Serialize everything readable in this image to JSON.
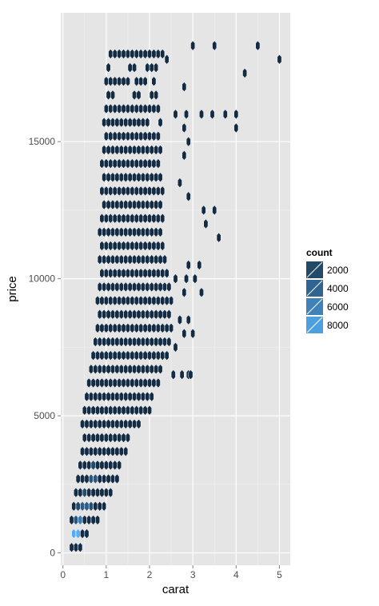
{
  "chart_data": {
    "type": "hexbin",
    "xlabel": "carat",
    "ylabel": "price",
    "xlim": [
      -0.05,
      5.25
    ],
    "ylim": [
      -450,
      19700
    ],
    "x_ticks": [
      0,
      1,
      2,
      3,
      4,
      5
    ],
    "y_ticks": [
      0,
      5000,
      10000,
      15000
    ],
    "y_tick_labels": [
      "0",
      "5000",
      "10000",
      "15000"
    ],
    "grid": true,
    "legend": {
      "title": "count",
      "position": "right",
      "entries": [
        {
          "label": "2000",
          "value": 2000
        },
        {
          "label": "4000",
          "value": 4000
        },
        {
          "label": "6000",
          "value": 6000
        },
        {
          "label": "8000",
          "value": 8000
        }
      ]
    },
    "color_scale": {
      "low": "#132b43",
      "high": "#56b1f7",
      "count_range": [
        1,
        9200
      ]
    },
    "hex_size": {
      "dx_carat": 0.1,
      "dy_price": 500
    },
    "envelope": [
      {
        "y": 200,
        "xmin": 0.2,
        "xmax": 0.45
      },
      {
        "y": 1000,
        "xmin": 0.2,
        "xmax": 0.75
      },
      {
        "y": 2000,
        "xmin": 0.2,
        "xmax": 1.05
      },
      {
        "y": 3000,
        "xmin": 0.35,
        "xmax": 1.35
      },
      {
        "y": 4000,
        "xmin": 0.4,
        "xmax": 1.5
      },
      {
        "y": 5000,
        "xmin": 0.45,
        "xmax": 1.95
      },
      {
        "y": 6000,
        "xmin": 0.55,
        "xmax": 2.2
      },
      {
        "y": 7000,
        "xmin": 0.65,
        "xmax": 2.4
      },
      {
        "y": 8000,
        "xmin": 0.75,
        "xmax": 2.5
      },
      {
        "y": 9000,
        "xmin": 0.8,
        "xmax": 2.5
      },
      {
        "y": 10000,
        "xmin": 0.8,
        "xmax": 2.5
      },
      {
        "y": 11000,
        "xmin": 0.85,
        "xmax": 2.4
      },
      {
        "y": 12000,
        "xmin": 0.85,
        "xmax": 2.3
      },
      {
        "y": 13000,
        "xmin": 0.9,
        "xmax": 2.3
      },
      {
        "y": 14000,
        "xmin": 0.9,
        "xmax": 2.3
      },
      {
        "y": 15000,
        "xmin": 0.9,
        "xmax": 2.25
      },
      {
        "y": 16000,
        "xmin": 0.95,
        "xmax": 2.3
      },
      {
        "y": 17000,
        "xmin": 1.0,
        "xmax": 2.1
      },
      {
        "y": 18000,
        "xmin": 1.0,
        "xmax": 2.2
      },
      {
        "y": 18500,
        "xmin": 1.2,
        "xmax": 2.6
      }
    ],
    "holes": [
      {
        "x": 1.2,
        "y": 17500
      },
      {
        "x": 1.4,
        "y": 17500
      },
      {
        "x": 1.6,
        "y": 17000
      },
      {
        "x": 1.8,
        "y": 17500
      },
      {
        "x": 1.3,
        "y": 16500
      },
      {
        "x": 1.5,
        "y": 16500
      },
      {
        "x": 1.9,
        "y": 16500
      },
      {
        "x": 2.0,
        "y": 17000
      },
      {
        "x": 2.1,
        "y": 15500
      }
    ],
    "outliers": [
      {
        "x": 3.0,
        "y": 18500
      },
      {
        "x": 3.5,
        "y": 18500
      },
      {
        "x": 4.5,
        "y": 18500
      },
      {
        "x": 5.0,
        "y": 18000
      },
      {
        "x": 4.2,
        "y": 17500
      },
      {
        "x": 2.4,
        "y": 18000
      },
      {
        "x": 2.8,
        "y": 17000
      },
      {
        "x": 2.6,
        "y": 16000
      },
      {
        "x": 2.85,
        "y": 16000
      },
      {
        "x": 3.2,
        "y": 16000
      },
      {
        "x": 3.45,
        "y": 16000
      },
      {
        "x": 3.75,
        "y": 16000
      },
      {
        "x": 4.0,
        "y": 16000
      },
      {
        "x": 4.0,
        "y": 15500
      },
      {
        "x": 2.8,
        "y": 15500
      },
      {
        "x": 2.9,
        "y": 15000
      },
      {
        "x": 2.8,
        "y": 14500
      },
      {
        "x": 2.7,
        "y": 13500
      },
      {
        "x": 2.9,
        "y": 13000
      },
      {
        "x": 3.25,
        "y": 12500
      },
      {
        "x": 3.5,
        "y": 12500
      },
      {
        "x": 3.3,
        "y": 12000
      },
      {
        "x": 3.6,
        "y": 11500
      },
      {
        "x": 2.9,
        "y": 10500
      },
      {
        "x": 2.6,
        "y": 10000
      },
      {
        "x": 2.85,
        "y": 10000
      },
      {
        "x": 3.05,
        "y": 10000
      },
      {
        "x": 3.15,
        "y": 10500
      },
      {
        "x": 3.2,
        "y": 9500
      },
      {
        "x": 2.8,
        "y": 9500
      },
      {
        "x": 2.7,
        "y": 8500
      },
      {
        "x": 2.9,
        "y": 8500
      },
      {
        "x": 2.8,
        "y": 8000
      },
      {
        "x": 3.0,
        "y": 8000
      },
      {
        "x": 2.6,
        "y": 7500
      },
      {
        "x": 2.55,
        "y": 6500
      },
      {
        "x": 2.75,
        "y": 6500
      },
      {
        "x": 2.9,
        "y": 6500
      },
      {
        "x": 2.95,
        "y": 6500
      }
    ],
    "highlights": [
      {
        "x": 0.3,
        "y": 700,
        "count": 9000
      },
      {
        "x": 0.35,
        "y": 700,
        "count": 6000
      },
      {
        "x": 0.4,
        "y": 1000,
        "count": 5500
      },
      {
        "x": 0.3,
        "y": 1000,
        "count": 3000
      },
      {
        "x": 0.5,
        "y": 1500,
        "count": 3500
      },
      {
        "x": 0.6,
        "y": 1500,
        "count": 2500
      },
      {
        "x": 0.7,
        "y": 2500,
        "count": 3000
      },
      {
        "x": 0.5,
        "y": 2000,
        "count": 2200
      },
      {
        "x": 0.4,
        "y": 1500,
        "count": 2000
      },
      {
        "x": 0.2,
        "y": 500,
        "count": 2500
      },
      {
        "x": 0.7,
        "y": 3000,
        "count": 2000
      }
    ]
  }
}
